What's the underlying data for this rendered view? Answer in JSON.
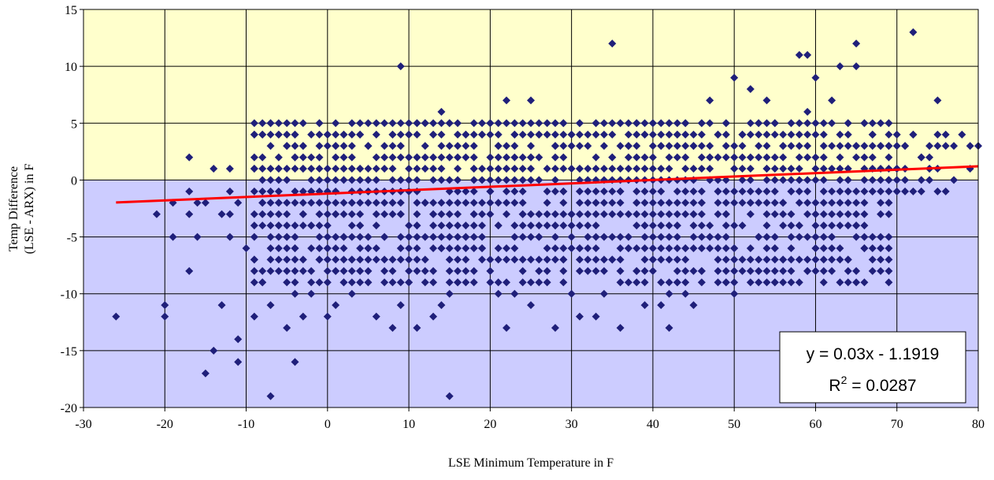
{
  "chart_data": {
    "type": "scatter",
    "xlabel": "LSE Minimum Temperature in F",
    "ylabel_line1": "Temp Difference",
    "ylabel_line2": "(LSE - ARX) in F",
    "xlim": [
      -30,
      80
    ],
    "ylim": [
      -20,
      15
    ],
    "x_ticks": [
      "-30",
      "-20",
      "-10",
      "0",
      "10",
      "20",
      "30",
      "40",
      "50",
      "60",
      "70",
      "80"
    ],
    "y_ticks": [
      "15",
      "10",
      "5",
      "0",
      "-5",
      "-10",
      "-15",
      "-20"
    ],
    "grid": true,
    "background_bands": [
      {
        "from": 0,
        "to": 15,
        "color": "#ffffcc"
      },
      {
        "from": -20,
        "to": 0,
        "color": "#ccccff"
      }
    ],
    "marker_color": "#1f1f7a",
    "marker_shape": "diamond",
    "trendline": {
      "slope": 0.03,
      "intercept": -1.1919,
      "x_range": [
        -26,
        80
      ],
      "color": "#ff0000"
    },
    "annotation": {
      "equation": "y = 0.03x - 1.1919",
      "r2_label": "R",
      "r2_sup": "2",
      "r2_value": " = 0.0287"
    },
    "points": [
      [
        -26,
        -12
      ],
      [
        -21,
        -3
      ],
      [
        -20,
        -11
      ],
      [
        -20,
        -12
      ],
      [
        -19,
        -2
      ],
      [
        -19,
        -5
      ],
      [
        -17,
        2
      ],
      [
        -17,
        -1
      ],
      [
        -17,
        -3
      ],
      [
        -17,
        -8
      ],
      [
        -16,
        -2
      ],
      [
        -16,
        -5
      ],
      [
        -15,
        -2
      ],
      [
        -15,
        -17
      ],
      [
        -14,
        1
      ],
      [
        -14,
        -15
      ],
      [
        -13,
        -3
      ],
      [
        -13,
        -11
      ],
      [
        -12,
        1
      ],
      [
        -12,
        -1
      ],
      [
        -12,
        -3
      ],
      [
        -12,
        -5
      ],
      [
        -11,
        -2
      ],
      [
        -11,
        -14
      ],
      [
        -11,
        -16
      ],
      [
        -10,
        -6
      ],
      [
        -9,
        4
      ],
      [
        -9,
        1
      ],
      [
        -9,
        -7
      ],
      [
        -9,
        -12
      ],
      [
        -8,
        4
      ],
      [
        -8,
        2
      ],
      [
        -8,
        -2
      ],
      [
        -8,
        -9
      ],
      [
        -7,
        5
      ],
      [
        -7,
        3
      ],
      [
        -7,
        -1
      ],
      [
        -7,
        -3
      ],
      [
        -7,
        -11
      ],
      [
        -7,
        -19
      ],
      [
        -6,
        4
      ],
      [
        -6,
        1
      ],
      [
        -6,
        -2
      ],
      [
        -6,
        -4
      ],
      [
        -5,
        3
      ],
      [
        -5,
        -5
      ],
      [
        -5,
        -13
      ],
      [
        -4,
        4
      ],
      [
        -4,
        2
      ],
      [
        -4,
        -6
      ],
      [
        -4,
        -10
      ],
      [
        -4,
        -16
      ],
      [
        -3,
        3
      ],
      [
        -3,
        1
      ],
      [
        -3,
        -3
      ],
      [
        -3,
        -12
      ],
      [
        -2,
        4
      ],
      [
        -2,
        -1
      ],
      [
        -2,
        -4
      ],
      [
        -2,
        -10
      ],
      [
        -1,
        5
      ],
      [
        -1,
        2
      ],
      [
        -1,
        -3
      ],
      [
        -1,
        -7
      ],
      [
        0,
        4
      ],
      [
        0,
        -2
      ],
      [
        0,
        -6
      ],
      [
        0,
        -12
      ],
      [
        1,
        5
      ],
      [
        1,
        3
      ],
      [
        1,
        -3
      ],
      [
        1,
        -8
      ],
      [
        1,
        -11
      ],
      [
        2,
        4
      ],
      [
        2,
        1
      ],
      [
        2,
        -5
      ],
      [
        2,
        -9
      ],
      [
        3,
        3
      ],
      [
        3,
        -2
      ],
      [
        3,
        -7
      ],
      [
        3,
        -10
      ],
      [
        4,
        4
      ],
      [
        4,
        1
      ],
      [
        4,
        -4
      ],
      [
        4,
        -8
      ],
      [
        5,
        3
      ],
      [
        5,
        -1
      ],
      [
        5,
        -6
      ],
      [
        5,
        -9
      ],
      [
        6,
        2
      ],
      [
        6,
        -3
      ],
      [
        6,
        -12
      ],
      [
        7,
        5
      ],
      [
        7,
        1
      ],
      [
        7,
        -5
      ],
      [
        7,
        -8
      ],
      [
        8,
        4
      ],
      [
        8,
        -2
      ],
      [
        8,
        -13
      ],
      [
        9,
        10
      ],
      [
        9,
        3
      ],
      [
        9,
        -3
      ],
      [
        9,
        -11
      ],
      [
        10,
        4
      ],
      [
        10,
        -1
      ],
      [
        10,
        -6
      ],
      [
        10,
        -9
      ],
      [
        11,
        5
      ],
      [
        11,
        2
      ],
      [
        11,
        -4
      ],
      [
        11,
        -13
      ],
      [
        12,
        5
      ],
      [
        12,
        -2
      ],
      [
        12,
        -7
      ],
      [
        13,
        4
      ],
      [
        13,
        -3
      ],
      [
        13,
        -12
      ],
      [
        14,
        6
      ],
      [
        14,
        1
      ],
      [
        14,
        -6
      ],
      [
        14,
        -11
      ],
      [
        15,
        5
      ],
      [
        15,
        -4
      ],
      [
        15,
        -10
      ],
      [
        15,
        -19
      ],
      [
        16,
        3
      ],
      [
        16,
        -2
      ],
      [
        16,
        -9
      ],
      [
        17,
        4
      ],
      [
        17,
        -5
      ],
      [
        18,
        5
      ],
      [
        18,
        1
      ],
      [
        18,
        -3
      ],
      [
        18,
        -9
      ],
      [
        19,
        4
      ],
      [
        19,
        -6
      ],
      [
        20,
        5
      ],
      [
        20,
        -1
      ],
      [
        20,
        -8
      ],
      [
        21,
        3
      ],
      [
        21,
        -4
      ],
      [
        21,
        -10
      ],
      [
        22,
        7
      ],
      [
        22,
        1
      ],
      [
        22,
        -2
      ],
      [
        22,
        -13
      ],
      [
        23,
        4
      ],
      [
        23,
        -6
      ],
      [
        23,
        -10
      ],
      [
        24,
        5
      ],
      [
        24,
        -3
      ],
      [
        24,
        -9
      ],
      [
        25,
        7
      ],
      [
        25,
        2
      ],
      [
        25,
        -11
      ],
      [
        26,
        4
      ],
      [
        26,
        -5
      ],
      [
        26,
        -8
      ],
      [
        27,
        5
      ],
      [
        27,
        -2
      ],
      [
        27,
        -9
      ],
      [
        28,
        3
      ],
      [
        28,
        -4
      ],
      [
        28,
        -13
      ],
      [
        29,
        5
      ],
      [
        29,
        -1
      ],
      [
        29,
        -7
      ],
      [
        30,
        4
      ],
      [
        30,
        -3
      ],
      [
        30,
        -10
      ],
      [
        31,
        5
      ],
      [
        31,
        1
      ],
      [
        31,
        -6
      ],
      [
        31,
        -12
      ],
      [
        32,
        3
      ],
      [
        32,
        -4
      ],
      [
        32,
        -8
      ],
      [
        33,
        5
      ],
      [
        33,
        -2
      ],
      [
        33,
        -12
      ],
      [
        34,
        4
      ],
      [
        34,
        -5
      ],
      [
        34,
        -10
      ],
      [
        35,
        12
      ],
      [
        35,
        2
      ],
      [
        35,
        -3
      ],
      [
        35,
        -7
      ],
      [
        36,
        5
      ],
      [
        36,
        -1
      ],
      [
        36,
        -13
      ],
      [
        37,
        3
      ],
      [
        37,
        -6
      ],
      [
        37,
        -9
      ],
      [
        38,
        5
      ],
      [
        38,
        -2
      ],
      [
        38,
        -8
      ],
      [
        39,
        4
      ],
      [
        39,
        -4
      ],
      [
        39,
        -11
      ],
      [
        40,
        5
      ],
      [
        40,
        1
      ],
      [
        40,
        -3
      ],
      [
        40,
        -7
      ],
      [
        41,
        3
      ],
      [
        41,
        -5
      ],
      [
        41,
        -11
      ],
      [
        42,
        5
      ],
      [
        42,
        -2
      ],
      [
        42,
        -10
      ],
      [
        42,
        -13
      ],
      [
        43,
        4
      ],
      [
        43,
        -4
      ],
      [
        43,
        -9
      ],
      [
        44,
        5
      ],
      [
        44,
        1
      ],
      [
        44,
        -6
      ],
      [
        44,
        -10
      ],
      [
        45,
        3
      ],
      [
        45,
        -3
      ],
      [
        45,
        -11
      ],
      [
        46,
        5
      ],
      [
        46,
        -2
      ],
      [
        46,
        -8
      ],
      [
        47,
        7
      ],
      [
        47,
        2
      ],
      [
        47,
        -5
      ],
      [
        48,
        4
      ],
      [
        48,
        -1
      ],
      [
        48,
        -7
      ],
      [
        49,
        5
      ],
      [
        49,
        -3
      ],
      [
        49,
        -9
      ],
      [
        50,
        9
      ],
      [
        50,
        1
      ],
      [
        50,
        -6
      ],
      [
        50,
        -10
      ],
      [
        51,
        4
      ],
      [
        51,
        -4
      ],
      [
        51,
        -8
      ],
      [
        52,
        8
      ],
      [
        52,
        2
      ],
      [
        52,
        -2
      ],
      [
        53,
        5
      ],
      [
        53,
        -5
      ],
      [
        53,
        -8
      ],
      [
        54,
        7
      ],
      [
        54,
        1
      ],
      [
        54,
        -3
      ],
      [
        55,
        5
      ],
      [
        55,
        -6
      ],
      [
        55,
        -9
      ],
      [
        56,
        3
      ],
      [
        56,
        -2
      ],
      [
        56,
        -7
      ],
      [
        57,
        5
      ],
      [
        57,
        -1
      ],
      [
        57,
        -5
      ],
      [
        58,
        11
      ],
      [
        58,
        2
      ],
      [
        58,
        -4
      ],
      [
        59,
        11
      ],
      [
        59,
        6
      ],
      [
        59,
        -3
      ],
      [
        59,
        -8
      ],
      [
        60,
        9
      ],
      [
        60,
        1
      ],
      [
        60,
        -6
      ],
      [
        61,
        4
      ],
      [
        61,
        -2
      ],
      [
        62,
        7
      ],
      [
        62,
        3
      ],
      [
        62,
        -5
      ],
      [
        63,
        10
      ],
      [
        63,
        1
      ],
      [
        63,
        -3
      ],
      [
        64,
        5
      ],
      [
        64,
        -1
      ],
      [
        64,
        -7
      ],
      [
        65,
        12
      ],
      [
        65,
        10
      ],
      [
        65,
        3
      ],
      [
        65,
        -4
      ],
      [
        66,
        5
      ],
      [
        66,
        -2
      ],
      [
        66,
        -6
      ],
      [
        67,
        4
      ],
      [
        67,
        -1
      ],
      [
        68,
        3
      ],
      [
        68,
        -3
      ],
      [
        69,
        5
      ],
      [
        69,
        -2
      ],
      [
        70,
        4
      ],
      [
        70,
        1
      ],
      [
        71,
        3
      ],
      [
        71,
        -1
      ],
      [
        72,
        13
      ],
      [
        72,
        4
      ],
      [
        73,
        2
      ],
      [
        74,
        1
      ],
      [
        75,
        7
      ],
      [
        75,
        -1
      ],
      [
        76,
        4
      ],
      [
        77,
        3
      ],
      [
        77,
        0
      ],
      [
        78,
        4
      ],
      [
        79,
        1
      ],
      [
        79,
        3
      ],
      [
        80,
        3
      ]
    ],
    "dense_bands": [
      {
        "x_from": -9,
        "x_to": 69,
        "y_from": -9,
        "y_to": 5,
        "step_x": 1,
        "step_y": 1,
        "density": 0.74
      },
      {
        "x_from": 69,
        "x_to": 76,
        "y_from": -1,
        "y_to": 4,
        "step_x": 1,
        "step_y": 1,
        "density": 0.6
      }
    ]
  }
}
